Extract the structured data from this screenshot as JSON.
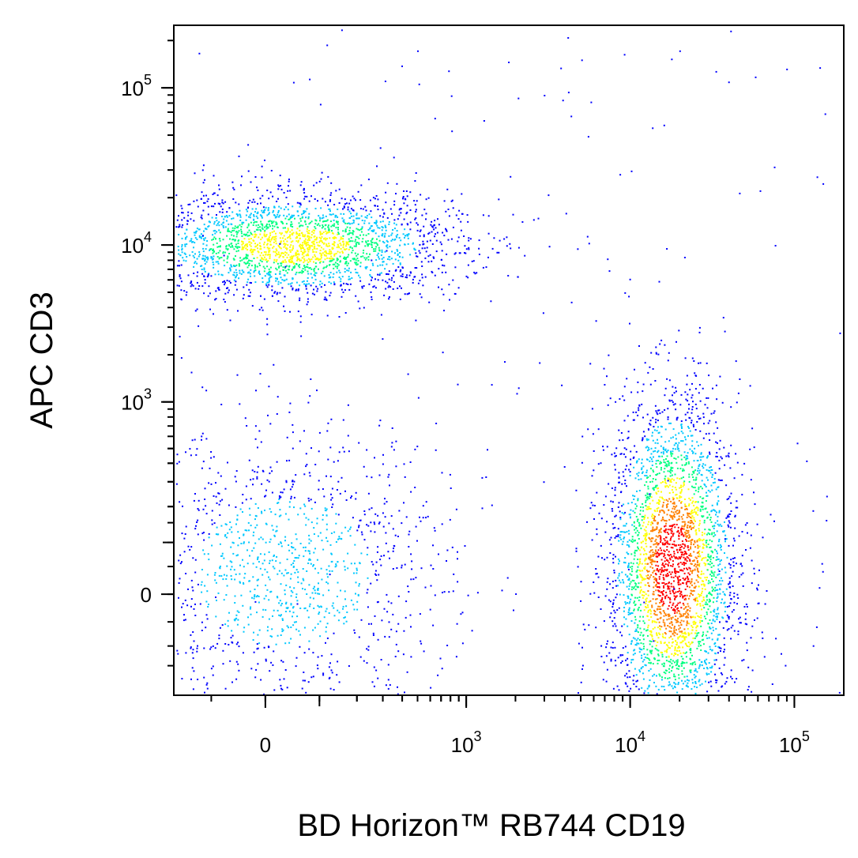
{
  "chart_data": {
    "type": "scatter",
    "subtype": "flow-cytometry-pseudocolor-density",
    "xlabel": "BD Horizon™ RB744 CD19",
    "ylabel": "APC  CD3",
    "x_scale": "biexponential",
    "y_scale": "biexponential",
    "xlim": [
      -200,
      200000
    ],
    "ylim": [
      -250,
      250000
    ],
    "x_ticks": [
      {
        "value": 0,
        "base": "0",
        "exp": ""
      },
      {
        "value": 1000,
        "base": "10",
        "exp": "3"
      },
      {
        "value": 10000,
        "base": "10",
        "exp": "4"
      },
      {
        "value": 100000,
        "base": "10",
        "exp": "5"
      }
    ],
    "y_ticks": [
      {
        "value": 0,
        "base": "0",
        "exp": ""
      },
      {
        "value": 1000,
        "base": "10",
        "exp": "3"
      },
      {
        "value": 10000,
        "base": "10",
        "exp": "4"
      },
      {
        "value": 100000,
        "base": "10",
        "exp": "5"
      }
    ],
    "color_scale": [
      "#0000ff",
      "#00c8ff",
      "#00ff80",
      "#ffff00",
      "#ff8000",
      "#ff0000"
    ],
    "grid": false,
    "legend": "none",
    "populations": [
      {
        "center": [
          50,
          10000
        ],
        "spread": [
          0.5,
          0.17
        ],
        "relative_density": 0.7,
        "peak_color_index": 3
      },
      {
        "center": [
          18000,
          50
        ],
        "spread": [
          0.2,
          0.55
        ],
        "relative_density": 1.0,
        "peak_color_index": 5
      },
      {
        "center": [
          30,
          40
        ],
        "spread": [
          0.5,
          0.45
        ],
        "relative_density": 0.25,
        "peak_color_index": 1
      }
    ]
  }
}
